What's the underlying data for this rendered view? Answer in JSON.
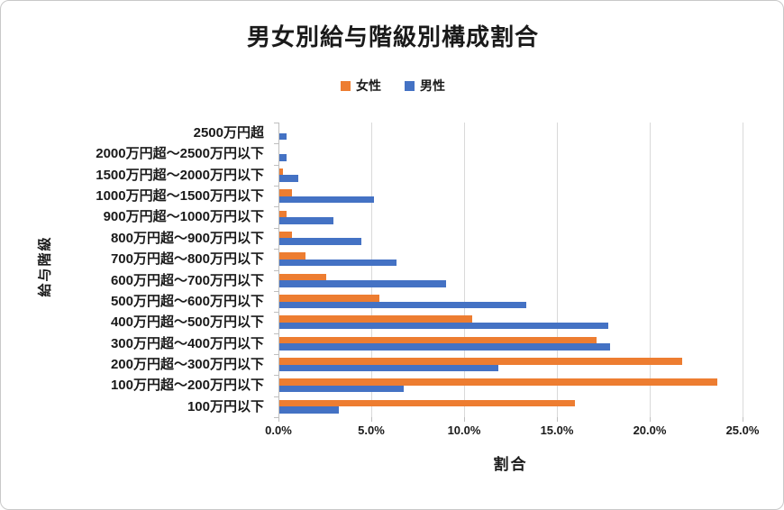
{
  "page": {
    "background": "#ffffff",
    "border_color": "#c9c9c9"
  },
  "chart_data": {
    "type": "bar",
    "orientation": "horizontal",
    "title": "男女別給与階級別構成割合",
    "xlabel": "割合",
    "ylabel": "給与階級",
    "categories": [
      "2500万円超",
      "2000万円超〜2500万円以下",
      "1500万円超〜2000万円以下",
      "1000万円超〜1500万円以下",
      "900万円超〜1000万円以下",
      "800万円超〜900万円以下",
      "700万円超〜800万円以下",
      "600万円超〜700万円以下",
      "500万円超〜600万円以下",
      "400万円超〜500万円以下",
      "300万円超〜400万円以下",
      "200万円超〜300万円以下",
      "100万円超〜200万円以下",
      "100万円以下"
    ],
    "series": [
      {
        "name": "女性",
        "color": "#ED7D31",
        "values": [
          0.0,
          0.0,
          0.2,
          0.7,
          0.4,
          0.7,
          1.4,
          2.5,
          5.4,
          10.4,
          17.1,
          21.7,
          23.6,
          15.9
        ]
      },
      {
        "name": "男性",
        "color": "#4472C4",
        "values": [
          0.4,
          0.4,
          1.0,
          5.1,
          2.9,
          4.4,
          6.3,
          9.0,
          13.3,
          17.7,
          17.8,
          11.8,
          6.7,
          3.2
        ]
      }
    ],
    "xlim": [
      0,
      25
    ],
    "x_ticks": [
      "0.0%",
      "5.0%",
      "10.0%",
      "15.0%",
      "20.0%",
      "25.0%"
    ],
    "grid": "vertical",
    "legend_position": "top",
    "gridline_color": "#d9d9d9",
    "axis_color": "#bfbfbf"
  }
}
